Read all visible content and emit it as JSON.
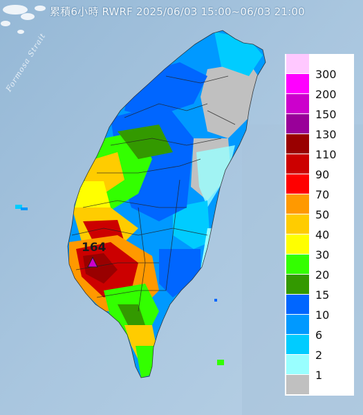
{
  "title": "累積6小時 RWRF 2025/06/03 15:00~06/03 21:00",
  "strait_label": "Formosa Strait",
  "max_value_label": "164",
  "legend": {
    "items": [
      {
        "label": "300",
        "color": "#ffc8ff"
      },
      {
        "label": "200",
        "color": "#ff00ff"
      },
      {
        "label": "150",
        "color": "#cc00cc"
      },
      {
        "label": "130",
        "color": "#990099"
      },
      {
        "label": "110",
        "color": "#990000"
      },
      {
        "label": "90",
        "color": "#cc0000"
      },
      {
        "label": "70",
        "color": "#ff0000"
      },
      {
        "label": "50",
        "color": "#ff9900"
      },
      {
        "label": "40",
        "color": "#ffcc00"
      },
      {
        "label": "30",
        "color": "#ffff00"
      },
      {
        "label": "20",
        "color": "#33ff00"
      },
      {
        "label": "15",
        "color": "#339900"
      },
      {
        "label": "10",
        "color": "#0066ff"
      },
      {
        "label": "6",
        "color": "#0099ff"
      },
      {
        "label": "2",
        "color": "#00ccff"
      },
      {
        "label": "1",
        "color": "#99ffff"
      },
      {
        "label": "",
        "color": "#c0c0c0"
      }
    ]
  }
}
